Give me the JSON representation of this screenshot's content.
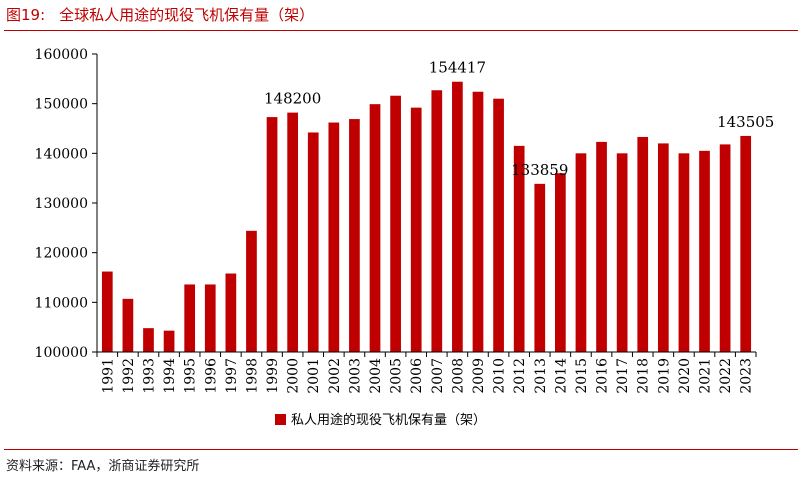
{
  "figure": {
    "number": "图19:",
    "title": "全球私人用途的现役飞机保有量（架）",
    "source": "资料来源：FAA，浙商证券研究所"
  },
  "chart_data": {
    "type": "bar",
    "title": "全球私人用途的现役飞机保有量（架）",
    "categories": [
      "1991",
      "1992",
      "1993",
      "1994",
      "1995",
      "1996",
      "1997",
      "1998",
      "1999",
      "2000",
      "2001",
      "2002",
      "2003",
      "2004",
      "2005",
      "2006",
      "2007",
      "2008",
      "2009",
      "2010",
      "2012",
      "2013",
      "2014",
      "2015",
      "2016",
      "2017",
      "2018",
      "2019",
      "2020",
      "2021",
      "2022",
      "2023"
    ],
    "series": [
      {
        "name": "私人用途的现役飞机保有量（架）",
        "color": "#c00000",
        "values": [
          116200,
          110700,
          104800,
          104300,
          113600,
          113600,
          115800,
          124400,
          147300,
          148200,
          144200,
          146200,
          146900,
          149900,
          151600,
          149200,
          152700,
          154417,
          152400,
          151000,
          141500,
          133859,
          136000,
          140000,
          142300,
          140000,
          143300,
          142000,
          140000,
          140500,
          141800,
          143505
        ]
      }
    ],
    "data_labels": [
      {
        "category": "2000",
        "text": "148200"
      },
      {
        "category": "2008",
        "text": "154417"
      },
      {
        "category": "2013",
        "text": "133859"
      },
      {
        "category": "2023",
        "text": "143505"
      }
    ],
    "yticks": [
      "100000",
      "110000",
      "120000",
      "130000",
      "140000",
      "150000",
      "160000"
    ],
    "ylim": [
      100000,
      160000
    ],
    "xlabel": "",
    "ylabel": "",
    "grid": false,
    "legend_position": "bottom-center"
  }
}
